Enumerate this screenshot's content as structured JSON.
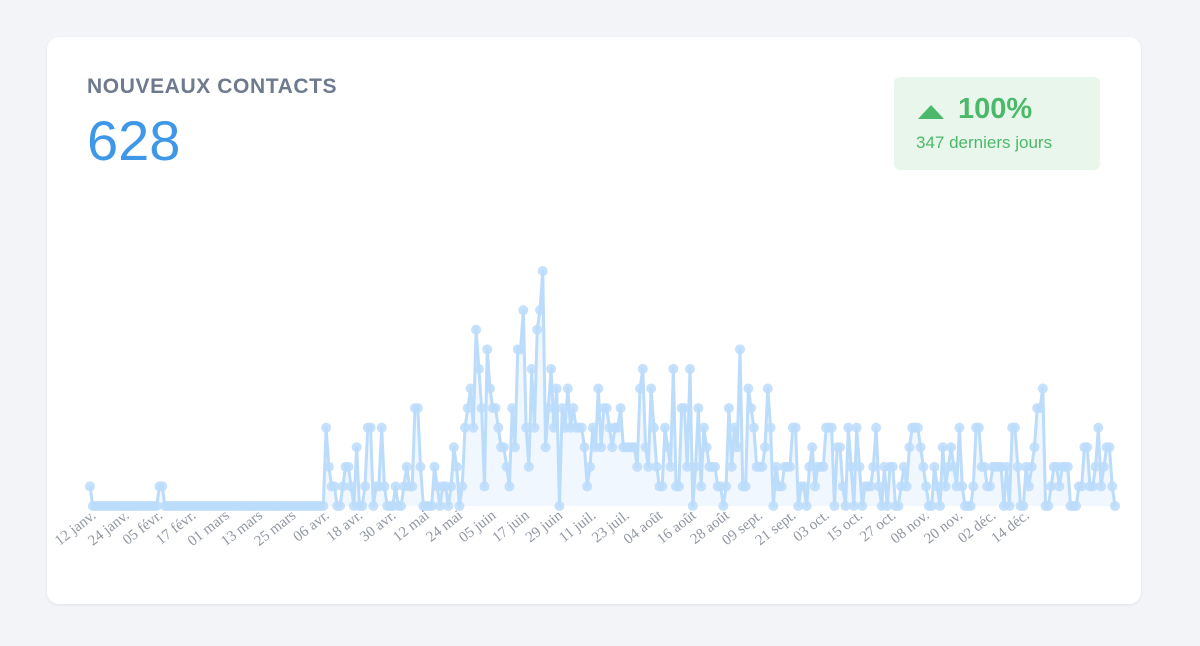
{
  "card": {
    "title": "NOUVEAUX CONTACTS",
    "value": "628",
    "badge": {
      "percent": "100%",
      "subtitle": "347 derniers jours",
      "direction": "up",
      "color": "#4cb96a"
    }
  },
  "chart_data": {
    "type": "area",
    "title": "NOUVEAUX CONTACTS",
    "xlabel": "",
    "ylabel": "",
    "ylim": [
      0,
      12
    ],
    "grid": false,
    "color": "#bcdcfb",
    "tick_labels": [
      "12 janv.",
      "24 janv.",
      "05 févr.",
      "17 févr.",
      "01 mars",
      "13 mars",
      "25 mars",
      "06 avr.",
      "18 avr.",
      "30 avr.",
      "12 mai",
      "24 mai",
      "05 juin",
      "17 juin",
      "29 juin",
      "11 juil.",
      "23 juil.",
      "04 août",
      "16 août",
      "28 août",
      "09 sept.",
      "21 sept.",
      "03 oct.",
      "15 oct.",
      "27 oct.",
      "08 nov.",
      "20 nov.",
      "02 déc.",
      "14 déc."
    ],
    "series": [
      {
        "name": "Nouveaux contacts",
        "start_date": "2023-01-11",
        "values": [
          1,
          0,
          0,
          0,
          0,
          0,
          0,
          0,
          0,
          0,
          0,
          0,
          0,
          0,
          0,
          0,
          0,
          0,
          0,
          0,
          0,
          0,
          0,
          0,
          0,
          1,
          1,
          0,
          0,
          0,
          0,
          0,
          0,
          0,
          0,
          0,
          0,
          0,
          0,
          0,
          0,
          0,
          0,
          0,
          0,
          0,
          0,
          0,
          0,
          0,
          0,
          0,
          0,
          0,
          0,
          0,
          0,
          0,
          0,
          0,
          0,
          0,
          0,
          0,
          0,
          0,
          0,
          0,
          0,
          0,
          0,
          0,
          0,
          0,
          0,
          0,
          0,
          0,
          0,
          0,
          0,
          0,
          0,
          0,
          0,
          4,
          2,
          1,
          1,
          0,
          0,
          1,
          2,
          2,
          1,
          0,
          3,
          0,
          0,
          1,
          4,
          4,
          0,
          1,
          1,
          4,
          1,
          0,
          0,
          0,
          1,
          0,
          0,
          1,
          2,
          1,
          1,
          5,
          5,
          2,
          0,
          0,
          0,
          0,
          2,
          1,
          0,
          1,
          1,
          0,
          1,
          3,
          2,
          0,
          1,
          4,
          5,
          6,
          4,
          9,
          7,
          5,
          1,
          8,
          6,
          5,
          5,
          4,
          3,
          3,
          2,
          1,
          5,
          3,
          8,
          8,
          10,
          4,
          2,
          7,
          4,
          9,
          10,
          12,
          3,
          5,
          7,
          4,
          6,
          0,
          5,
          4,
          6,
          4,
          5,
          4,
          4,
          4,
          3,
          1,
          2,
          4,
          3,
          6,
          3,
          5,
          5,
          4,
          3,
          4,
          4,
          5,
          3,
          3,
          3,
          3,
          3,
          2,
          6,
          7,
          3,
          2,
          6,
          4,
          2,
          1,
          1,
          4,
          3,
          2,
          7,
          1,
          1,
          5,
          5,
          2,
          7,
          0,
          2,
          5,
          1,
          4,
          3,
          2,
          2,
          2,
          1,
          1,
          0,
          1,
          5,
          2,
          4,
          3,
          8,
          1,
          1,
          6,
          5,
          4,
          2,
          2,
          2,
          3,
          6,
          4,
          0,
          2,
          1,
          1,
          2,
          2,
          2,
          4,
          4,
          0,
          1,
          1,
          0,
          2,
          3,
          1,
          2,
          2,
          2,
          4,
          4,
          4,
          0,
          3,
          3,
          1,
          0,
          4,
          2,
          0,
          4,
          2,
          0,
          1,
          1,
          1,
          2,
          4,
          1,
          0,
          2,
          0,
          2,
          2,
          0,
          0,
          1,
          2,
          1,
          3,
          4,
          4,
          4,
          3,
          2,
          1,
          0,
          0,
          2,
          1,
          0,
          3,
          1,
          2,
          3,
          2,
          1,
          4,
          1,
          0,
          0,
          0,
          1,
          4,
          4,
          2,
          2,
          1,
          1,
          2,
          2,
          2,
          2,
          0,
          2,
          0,
          4,
          4,
          2,
          0,
          0,
          2,
          1,
          2,
          3,
          5,
          5,
          6,
          0,
          0,
          1,
          2,
          2,
          1,
          2,
          2,
          2,
          0,
          0,
          0,
          1,
          1,
          3,
          3,
          1,
          1,
          2,
          4,
          1,
          2,
          3,
          3,
          1,
          0
        ]
      }
    ]
  }
}
